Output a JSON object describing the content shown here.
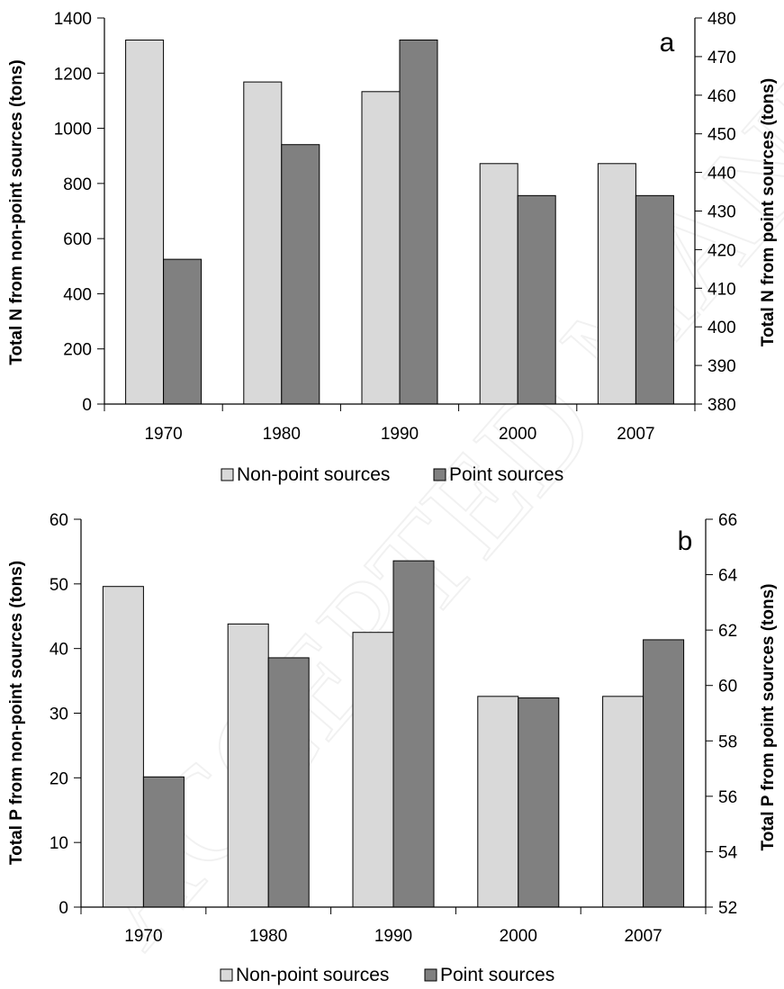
{
  "chart_data": [
    {
      "type": "bar",
      "panel_label": "a",
      "categories": [
        "1970",
        "1980",
        "1990",
        "2000",
        "2007"
      ],
      "series": [
        {
          "name": "Non-point sources",
          "axis": "left",
          "color": "#d9d9d9",
          "values": [
            1320,
            1168,
            1133,
            872,
            872
          ]
        },
        {
          "name": "Point sources",
          "axis": "right",
          "color": "#808080",
          "values": [
            417.5,
            447.2,
            474.3,
            434.0,
            434.0
          ]
        }
      ],
      "ylabel": "Total N from non-point sources (tons)",
      "ylabel_right": "Total N from point sources (tons)",
      "ylim": [
        0,
        1400
      ],
      "ylim_right": [
        380,
        480
      ],
      "yticks": [
        "0",
        "200",
        "400",
        "600",
        "800",
        "1000",
        "1200",
        "1400"
      ],
      "yticks_right": [
        "380",
        "390",
        "400",
        "410",
        "420",
        "430",
        "440",
        "450",
        "460",
        "470",
        "480"
      ],
      "legend": [
        "Non-point sources",
        "Point sources"
      ],
      "legend_position": "bottom",
      "grid": false
    },
    {
      "type": "bar",
      "panel_label": "b",
      "categories": [
        "1970",
        "1980",
        "1990",
        "2000",
        "2007"
      ],
      "series": [
        {
          "name": "Non-point sources",
          "axis": "left",
          "color": "#d9d9d9",
          "values": [
            49.6,
            43.8,
            42.5,
            32.6,
            32.6
          ]
        },
        {
          "name": "Point sources",
          "axis": "right",
          "color": "#808080",
          "values": [
            56.7,
            61.0,
            64.5,
            59.55,
            61.65
          ]
        }
      ],
      "ylabel": "Total P from non-point sources (tons)",
      "ylabel_right": "Total P from point sources (tons)",
      "ylim": [
        0,
        60
      ],
      "ylim_right": [
        52,
        66
      ],
      "yticks": [
        "0",
        "10",
        "20",
        "30",
        "40",
        "50",
        "60"
      ],
      "yticks_right": [
        "52",
        "54",
        "56",
        "58",
        "60",
        "62",
        "64",
        "66"
      ],
      "legend": [
        "Non-point sources",
        "Point sources"
      ],
      "legend_position": "bottom",
      "grid": false
    }
  ],
  "watermark": "ACCEPTED MANUSCRIPT"
}
